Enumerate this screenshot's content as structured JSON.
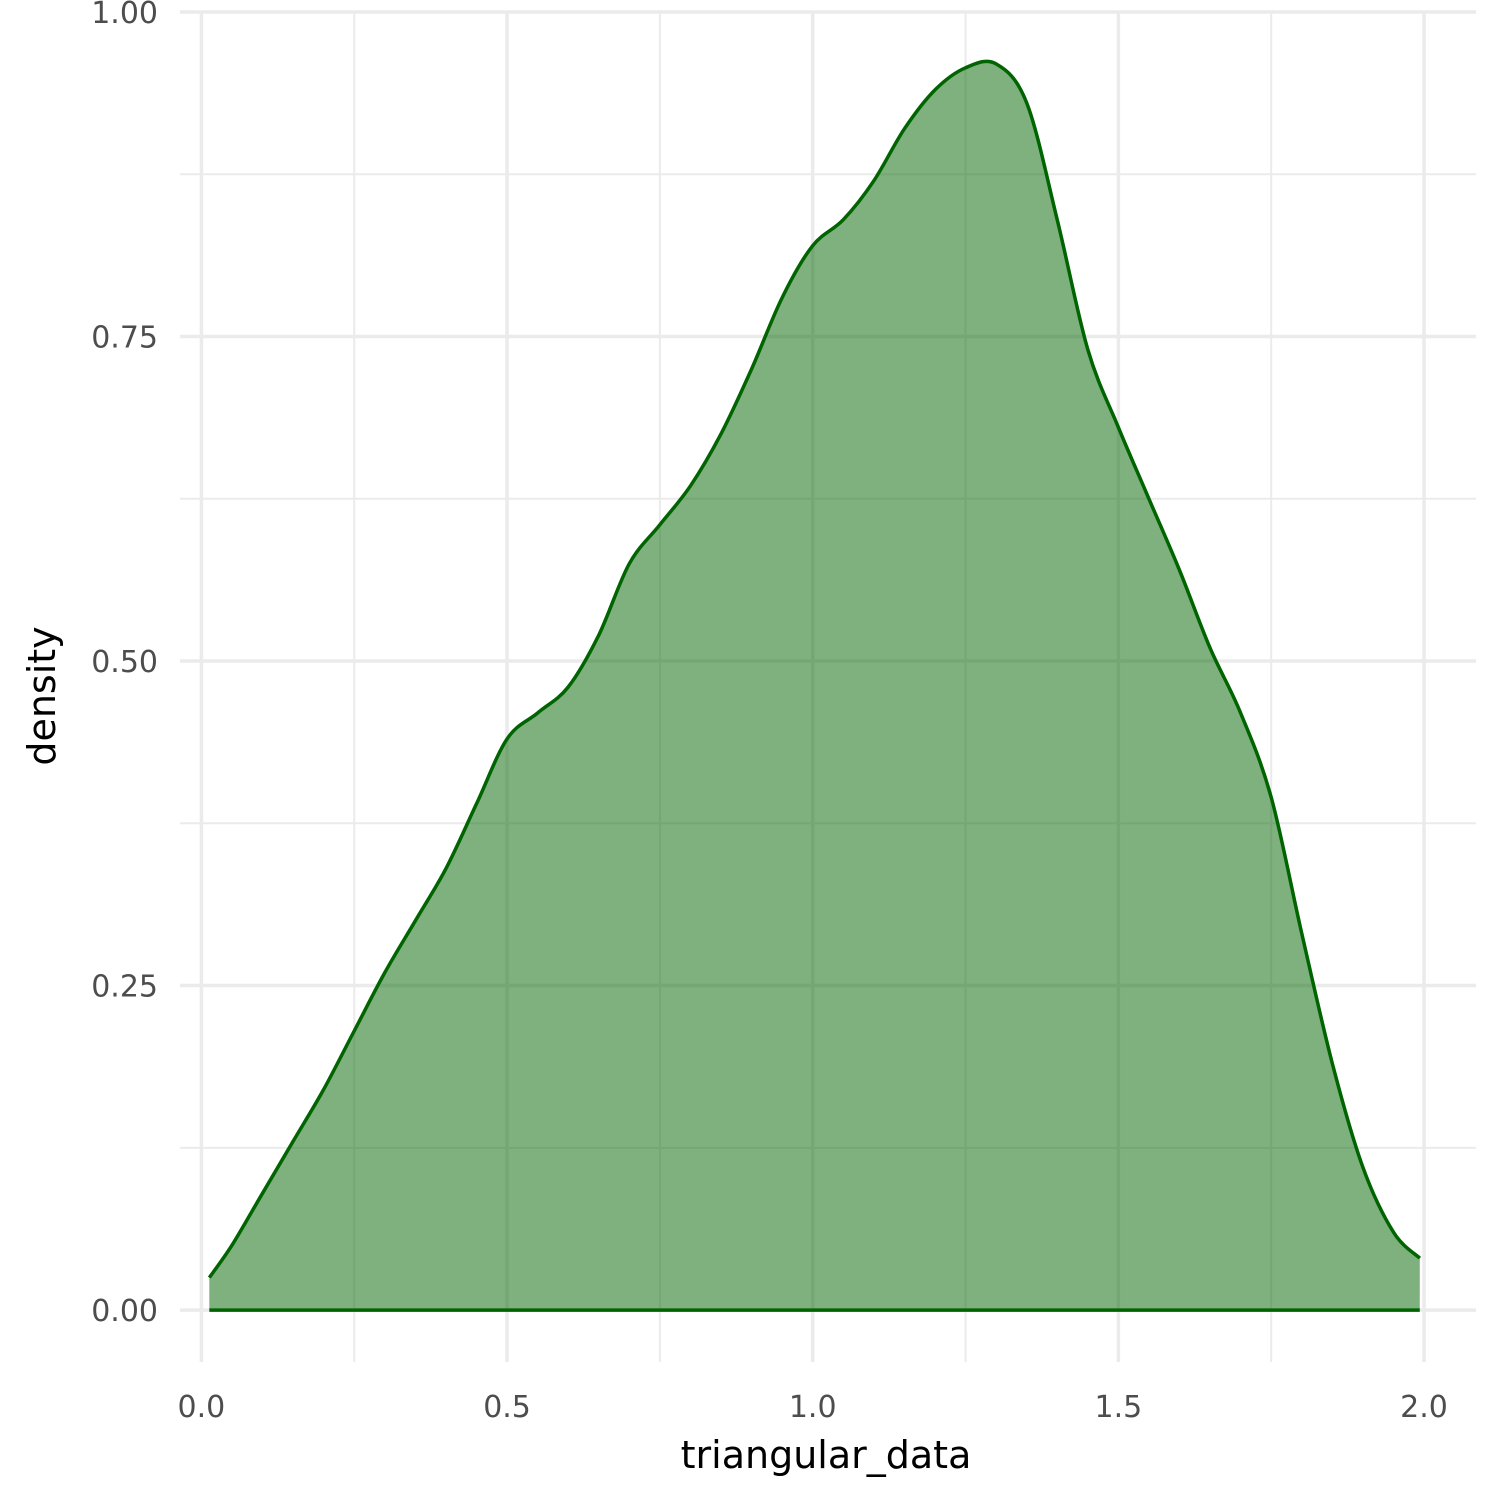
{
  "chart_data": {
    "type": "area",
    "xlabel": "triangular_data",
    "ylabel": "density",
    "xlim": [
      -0.035,
      2.085
    ],
    "ylim": [
      -0.04,
      1.0
    ],
    "x_ticks": [
      0.0,
      0.5,
      1.0,
      1.5,
      2.0
    ],
    "x_tick_labels": [
      "0.0",
      "0.5",
      "1.0",
      "1.5",
      "2.0"
    ],
    "x_minor_ticks": [
      0.25,
      0.75,
      1.25,
      1.75
    ],
    "y_ticks": [
      0.0,
      0.25,
      0.5,
      0.75,
      1.0
    ],
    "y_tick_labels": [
      "0.00",
      "0.25",
      "0.50",
      "0.75",
      "1.00"
    ],
    "y_minor_ticks": [
      0.125,
      0.375,
      0.625,
      0.875
    ],
    "grid": true,
    "fill_color": "#006400",
    "fill_opacity": 0.5,
    "line_color": "#006400",
    "series": [
      {
        "x": [
          0.013,
          0.05,
          0.1,
          0.15,
          0.2,
          0.25,
          0.3,
          0.35,
          0.4,
          0.45,
          0.5,
          0.55,
          0.6,
          0.65,
          0.7,
          0.75,
          0.8,
          0.85,
          0.9,
          0.95,
          1.0,
          1.05,
          1.1,
          1.15,
          1.2,
          1.25,
          1.3,
          1.35,
          1.4,
          1.45,
          1.5,
          1.55,
          1.6,
          1.65,
          1.7,
          1.75,
          1.8,
          1.85,
          1.9,
          1.95,
          1.993
        ],
        "y": [
          0.025,
          0.05,
          0.09,
          0.13,
          0.17,
          0.215,
          0.26,
          0.3,
          0.34,
          0.39,
          0.44,
          0.46,
          0.48,
          0.52,
          0.575,
          0.605,
          0.635,
          0.675,
          0.725,
          0.78,
          0.82,
          0.84,
          0.87,
          0.91,
          0.94,
          0.957,
          0.96,
          0.93,
          0.84,
          0.74,
          0.68,
          0.625,
          0.57,
          0.51,
          0.46,
          0.395,
          0.29,
          0.19,
          0.11,
          0.06,
          0.04
        ]
      }
    ]
  }
}
